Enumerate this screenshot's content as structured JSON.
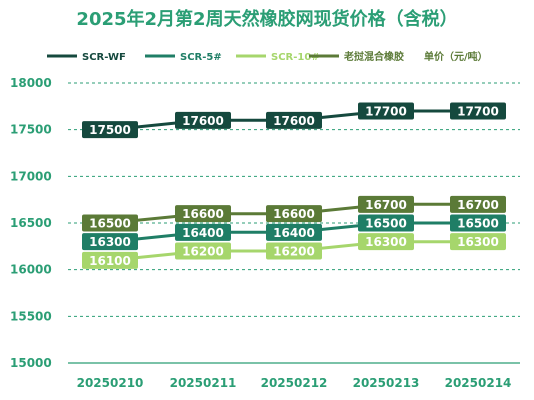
{
  "title": "2025年2月第2周天然橡胶网现货价格（含税）",
  "title_color": "#2b9e75",
  "legend_position": "top",
  "unit_label": "单价（元/吨）",
  "chart_data": {
    "type": "line",
    "title": "2025年2月第2周天然橡胶网现货价格（含税）",
    "categories": [
      "20250210",
      "20250211",
      "20250212",
      "20250213",
      "20250214"
    ],
    "ylim": [
      15000,
      18000
    ],
    "yticks": [
      15000,
      15500,
      16000,
      16500,
      17000,
      17500,
      18000
    ],
    "grid": "horizontal dashed",
    "series": [
      {
        "name": "SCR-WF",
        "color": "#15493e",
        "values": [
          17500,
          17600,
          17600,
          17700,
          17700
        ]
      },
      {
        "name": "SCR-5#",
        "color": "#1f7e66",
        "values": [
          16300,
          16400,
          16400,
          16500,
          16500
        ]
      },
      {
        "name": "SCR-10#",
        "color": "#a6d66c",
        "values": [
          16100,
          16200,
          16200,
          16300,
          16300
        ]
      },
      {
        "name": "老挝混合橡胶",
        "color": "#5b7a37",
        "values": [
          16500,
          16600,
          16600,
          16700,
          16700
        ]
      }
    ]
  }
}
